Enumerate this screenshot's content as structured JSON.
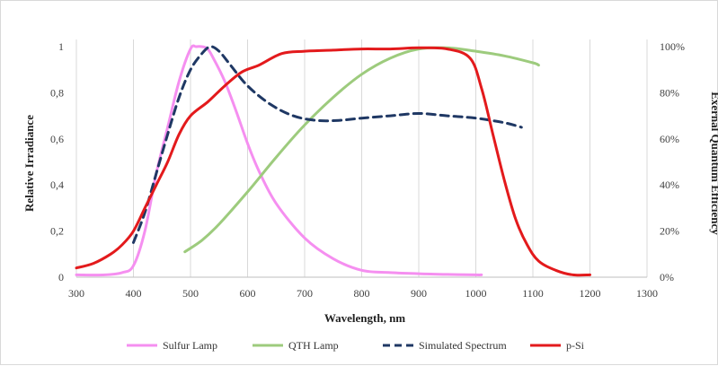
{
  "chart_data": {
    "type": "line",
    "xlabel": "Wavelength,  nm",
    "ylabel": "Relative  Irradiance",
    "y2label": "Exernal  Quantum  Efficiency",
    "xlim": [
      300,
      1300
    ],
    "ylim": [
      0,
      1
    ],
    "y2lim": [
      0,
      1
    ],
    "x_ticks": [
      "300",
      "400",
      "500",
      "600",
      "700",
      "800",
      "900",
      "1000",
      "1100",
      "1200",
      "1300"
    ],
    "y_ticks": [
      "0",
      "0,2",
      "0,4",
      "0,6",
      "0,8",
      "1"
    ],
    "y2_ticks": [
      "0%",
      "20%",
      "40%",
      "60%",
      "80%",
      "100%"
    ],
    "grid": "vertical",
    "legend_position": "bottom",
    "series": [
      {
        "name": "Sulfur Lamp",
        "color": "#f58ff0",
        "dash": "solid",
        "axis": "left",
        "x": [
          300,
          350,
          380,
          400,
          420,
          440,
          460,
          480,
          500,
          510,
          520,
          530,
          540,
          560,
          580,
          600,
          620,
          650,
          700,
          750,
          800,
          850,
          900,
          950,
          1000,
          1010
        ],
        "y": [
          0.01,
          0.01,
          0.02,
          0.05,
          0.2,
          0.45,
          0.65,
          0.85,
          0.99,
          1.0,
          1.0,
          0.99,
          0.95,
          0.85,
          0.72,
          0.58,
          0.46,
          0.32,
          0.17,
          0.08,
          0.03,
          0.02,
          0.015,
          0.012,
          0.01,
          0.01
        ]
      },
      {
        "name": "QTH Lamp",
        "color": "#9dcb7d",
        "dash": "solid",
        "axis": "left",
        "x": [
          490,
          520,
          550,
          600,
          650,
          700,
          750,
          800,
          850,
          900,
          950,
          1000,
          1050,
          1100,
          1110
        ],
        "y": [
          0.11,
          0.16,
          0.23,
          0.37,
          0.52,
          0.66,
          0.78,
          0.88,
          0.95,
          0.99,
          0.995,
          0.98,
          0.96,
          0.93,
          0.92
        ]
      },
      {
        "name": "Simulated Spectrum",
        "color": "#1f3864",
        "dash": "dashed",
        "axis": "left",
        "x": [
          400,
          420,
          440,
          460,
          480,
          500,
          520,
          535,
          550,
          570,
          600,
          640,
          680,
          720,
          760,
          800,
          850,
          900,
          950,
          1000,
          1050,
          1080
        ],
        "y": [
          0.15,
          0.28,
          0.45,
          0.62,
          0.78,
          0.9,
          0.97,
          1.0,
          0.98,
          0.92,
          0.83,
          0.75,
          0.7,
          0.68,
          0.68,
          0.69,
          0.7,
          0.71,
          0.7,
          0.69,
          0.67,
          0.65
        ]
      },
      {
        "name": "p-Si",
        "color": "#e31a1c",
        "dash": "solid",
        "axis": "right",
        "x": [
          300,
          330,
          360,
          380,
          400,
          420,
          440,
          460,
          480,
          500,
          530,
          560,
          590,
          620,
          660,
          700,
          750,
          800,
          850,
          900,
          950,
          990,
          1010,
          1030,
          1050,
          1070,
          1090,
          1110,
          1140,
          1170,
          1200
        ],
        "y": [
          0.04,
          0.06,
          0.1,
          0.14,
          0.2,
          0.3,
          0.4,
          0.5,
          0.62,
          0.7,
          0.76,
          0.83,
          0.89,
          0.92,
          0.97,
          0.98,
          0.985,
          0.99,
          0.99,
          0.995,
          0.99,
          0.95,
          0.82,
          0.62,
          0.42,
          0.25,
          0.14,
          0.07,
          0.03,
          0.01,
          0.01
        ]
      }
    ]
  }
}
